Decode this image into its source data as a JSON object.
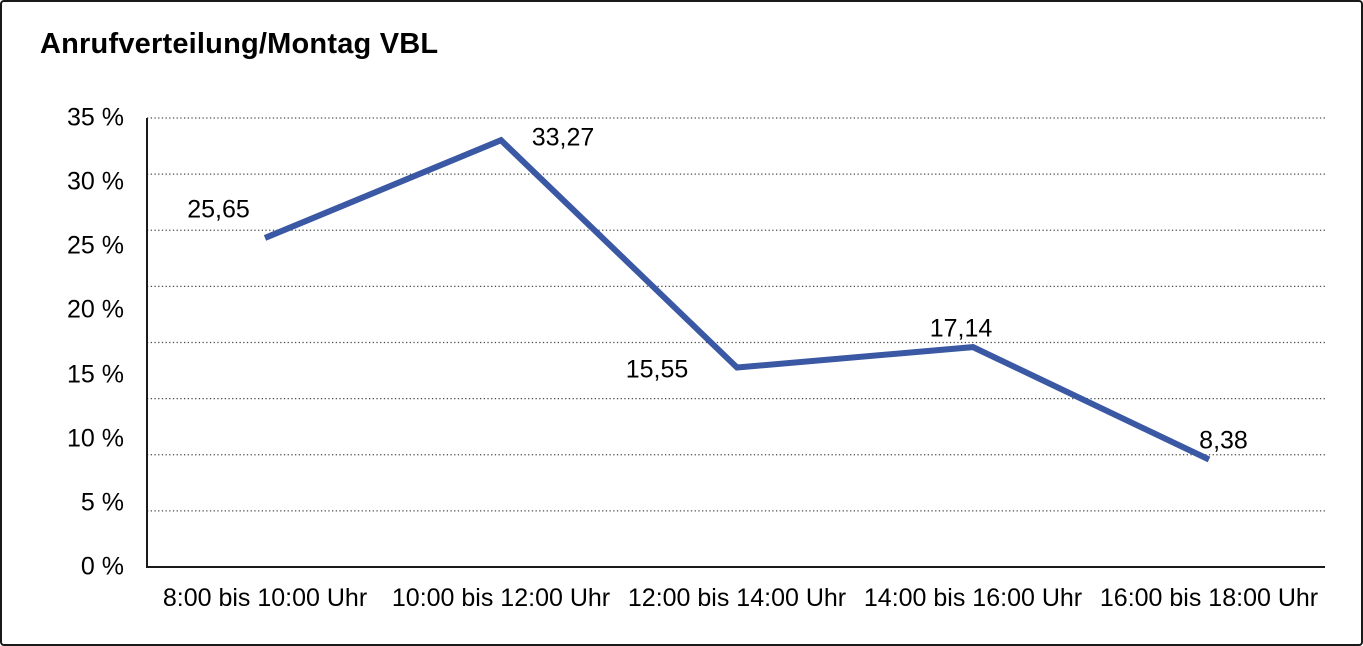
{
  "window": {
    "background": "#ffffff",
    "border_color": "#1a1a1a"
  },
  "title": "Anrufverteilung/Montag VBL",
  "chart_data": {
    "type": "line",
    "title": "Anrufverteilung/Montag VBL",
    "categories": [
      "8:00 bis 10:00 Uhr",
      "10:00 bis 12:00 Uhr",
      "12:00 bis 14:00 Uhr",
      "14:00 bis 16:00 Uhr",
      "16:00 bis 18:00 Uhr"
    ],
    "values": [
      25.65,
      33.27,
      15.55,
      17.14,
      8.38
    ],
    "data_labels": [
      "25,65",
      "33,27",
      "15,55",
      "17,14",
      "8,38"
    ],
    "xlabel": "",
    "ylabel": "",
    "ylim": [
      0,
      35
    ],
    "y_ticks": [
      "0 %",
      "5 %",
      "10 %",
      "15 %",
      "20 %",
      "25 %",
      "30 %",
      "35 %"
    ],
    "y_tick_step": 5,
    "grid": "horizontal-dotted",
    "grid_divisions": 8,
    "legend": "none",
    "line_color": "#3a58a3",
    "axis_color": "#1a1a1a",
    "grid_color": "#4c4c4c",
    "text_color": "#000000"
  }
}
